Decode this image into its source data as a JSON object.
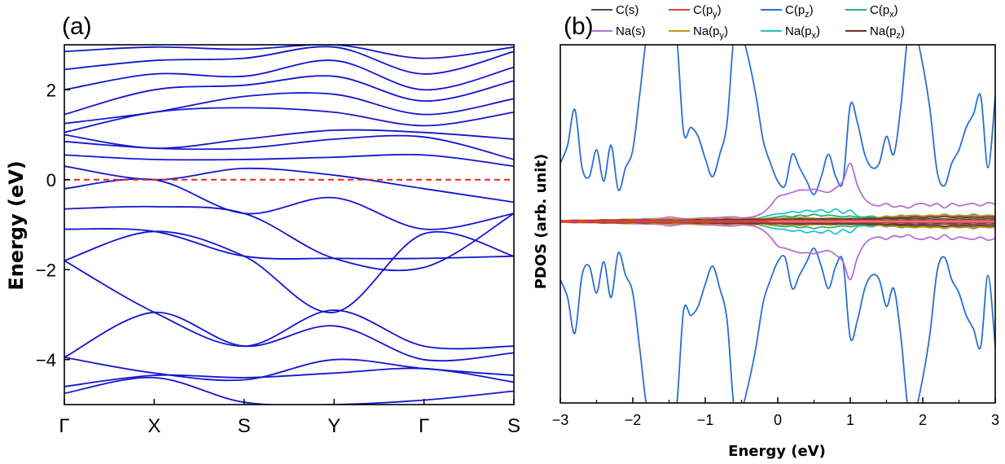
{
  "chart_data": [
    {
      "type": "line",
      "panel_label": "(a)",
      "title": "",
      "xlabel": "",
      "ylabel": "Energy (eV)",
      "ylim": [
        -5,
        3
      ],
      "yticks": [
        -4,
        -2,
        0,
        2
      ],
      "ytick_labels": [
        "−4",
        "−2",
        "0",
        "2"
      ],
      "kpoints": [
        "Γ",
        "X",
        "S",
        "Y",
        "Γ",
        "S"
      ],
      "kpath": [
        0,
        1,
        2,
        3,
        4,
        5
      ],
      "fermi_level": 0,
      "fermi_color": "#e8281f",
      "band_color": "#1414d2",
      "series": [
        {
          "name": "band",
          "values": [
            -4.75,
            -4.4,
            -4.95,
            -5.0,
            -4.9,
            -4.7
          ]
        },
        {
          "name": "band",
          "values": [
            -4.6,
            -4.35,
            -4.4,
            -4.3,
            -4.2,
            -4.5
          ]
        },
        {
          "name": "band",
          "values": [
            -3.95,
            -4.3,
            -4.45,
            -4.0,
            -4.2,
            -4.35
          ]
        },
        {
          "name": "band",
          "values": [
            -3.95,
            -2.95,
            -3.7,
            -3.25,
            -4.0,
            -3.85
          ]
        },
        {
          "name": "band",
          "values": [
            -1.8,
            -2.95,
            -3.7,
            -2.9,
            -3.7,
            -3.7
          ]
        },
        {
          "name": "band",
          "values": [
            -1.8,
            -1.15,
            -1.7,
            -2.95,
            -1.2,
            -1.7
          ]
        },
        {
          "name": "band",
          "values": [
            -1.1,
            -1.15,
            -1.7,
            -1.75,
            -1.75,
            -1.7
          ]
        },
        {
          "name": "band",
          "values": [
            -0.65,
            -0.6,
            -0.75,
            -1.75,
            -1.95,
            -0.75
          ]
        },
        {
          "name": "band",
          "values": [
            -0.2,
            -0.0,
            -0.75,
            -0.4,
            -1.1,
            -0.75
          ]
        },
        {
          "name": "band",
          "values": [
            0.3,
            0.0,
            0.25,
            0.1,
            -0.2,
            -0.5
          ]
        },
        {
          "name": "band",
          "values": [
            0.55,
            0.45,
            0.45,
            0.5,
            0.55,
            0.3
          ]
        },
        {
          "name": "band",
          "values": [
            0.85,
            0.7,
            0.7,
            0.9,
            0.95,
            0.45
          ]
        },
        {
          "name": "band",
          "values": [
            1.0,
            0.7,
            0.9,
            1.1,
            1.05,
            0.9
          ]
        },
        {
          "name": "band",
          "values": [
            1.05,
            1.5,
            1.6,
            1.5,
            1.2,
            1.5
          ]
        },
        {
          "name": "band",
          "values": [
            1.25,
            1.5,
            1.85,
            1.9,
            1.45,
            1.8
          ]
        },
        {
          "name": "band",
          "values": [
            1.45,
            2.0,
            2.1,
            2.3,
            1.75,
            2.2
          ]
        },
        {
          "name": "band",
          "values": [
            2.0,
            2.35,
            2.3,
            2.65,
            2.0,
            2.5
          ]
        },
        {
          "name": "band",
          "values": [
            2.45,
            2.65,
            2.7,
            2.95,
            2.35,
            2.85
          ]
        },
        {
          "name": "band",
          "values": [
            2.85,
            2.95,
            2.9,
            3.0,
            2.7,
            2.95
          ]
        }
      ]
    },
    {
      "type": "line",
      "panel_label": "(b)",
      "title": "",
      "xlabel": "Energy (eV)",
      "ylabel": "PDOS (arb. unit)",
      "xlim": [
        -3,
        3
      ],
      "xticks": [
        -3,
        -2,
        -1,
        0,
        1,
        2,
        3
      ],
      "xtick_labels": [
        "−3",
        "−2",
        "−1",
        "0",
        "1",
        "2",
        "3"
      ],
      "legend": [
        {
          "base": "C(s)",
          "sub": "",
          "close": "",
          "color": "#4d4d4d"
        },
        {
          "base": "C(p",
          "sub": "y",
          "close": ")",
          "color": "#ee3b3b"
        },
        {
          "base": "C(p",
          "sub": "z",
          "close": ")",
          "color": "#2a6fd0"
        },
        {
          "base": "C(p",
          "sub": "x",
          "close": ")",
          "color": "#22b07d"
        },
        {
          "base": "Na(s)",
          "sub": "",
          "close": "",
          "color": "#b56fd6"
        },
        {
          "base": "Na(p",
          "sub": "y",
          "close": ")",
          "color": "#c8920e"
        },
        {
          "base": "Na(p",
          "sub": "x",
          "close": ")",
          "color": "#21c4c4"
        },
        {
          "base": "Na(p",
          "sub": "z",
          "close": ")",
          "color": "#7a2c28"
        }
      ],
      "x": [
        -3.0,
        -2.9,
        -2.8,
        -2.7,
        -2.6,
        -2.5,
        -2.4,
        -2.3,
        -2.2,
        -2.1,
        -2.0,
        -1.9,
        -1.8,
        -1.7,
        -1.6,
        -1.5,
        -1.4,
        -1.3,
        -1.2,
        -1.1,
        -1.0,
        -0.9,
        -0.8,
        -0.7,
        -0.6,
        -0.5,
        -0.4,
        -0.3,
        -0.2,
        -0.1,
        0.0,
        0.1,
        0.2,
        0.3,
        0.4,
        0.5,
        0.6,
        0.7,
        0.8,
        0.9,
        1.0,
        1.1,
        1.2,
        1.3,
        1.4,
        1.5,
        1.6,
        1.7,
        1.8,
        1.9,
        2.0,
        2.1,
        2.2,
        2.3,
        2.4,
        2.5,
        2.6,
        2.7,
        2.8,
        2.9,
        3.0
      ],
      "series": [
        {
          "name": "C(p_z)",
          "values": [
            1.3,
            1.7,
            2.5,
            1.2,
            1.0,
            1.6,
            0.9,
            1.7,
            0.7,
            1.2,
            1.6,
            2.9,
            4.2,
            4.2,
            4.2,
            4.2,
            4.2,
            2.0,
            2.1,
            1.9,
            1.4,
            1.0,
            1.5,
            2.2,
            4.2,
            4.2,
            3.6,
            2.8,
            1.8,
            1.3,
            0.9,
            0.8,
            1.5,
            1.2,
            0.9,
            0.6,
            1.0,
            1.5,
            1.0,
            0.9,
            2.6,
            2.2,
            1.5,
            1.2,
            1.3,
            1.9,
            1.5,
            2.6,
            4.2,
            4.2,
            3.5,
            2.5,
            1.1,
            0.8,
            1.3,
            1.6,
            2.1,
            2.4,
            2.8,
            1.2,
            2.8
          ]
        },
        {
          "name": "Na(s)",
          "values": [
            0.02,
            0.02,
            0.03,
            0.02,
            0.03,
            0.02,
            0.03,
            0.04,
            0.03,
            0.04,
            0.05,
            0.05,
            0.06,
            0.06,
            0.07,
            0.1,
            0.08,
            0.06,
            0.06,
            0.07,
            0.08,
            0.08,
            0.09,
            0.1,
            0.1,
            0.08,
            0.09,
            0.12,
            0.2,
            0.35,
            0.55,
            0.6,
            0.65,
            0.7,
            0.7,
            0.72,
            0.68,
            0.65,
            0.75,
            0.9,
            1.3,
            0.8,
            0.5,
            0.38,
            0.35,
            0.4,
            0.32,
            0.35,
            0.3,
            0.38,
            0.4,
            0.35,
            0.4,
            0.3,
            0.4,
            0.35,
            0.38,
            0.4,
            0.35,
            0.42,
            0.38
          ]
        },
        {
          "name": "Na(p_x)",
          "values": [
            0.01,
            0.01,
            0.01,
            0.02,
            0.01,
            0.02,
            0.02,
            0.03,
            0.02,
            0.03,
            0.03,
            0.02,
            0.03,
            0.02,
            0.03,
            0.04,
            0.03,
            0.03,
            0.03,
            0.04,
            0.04,
            0.04,
            0.04,
            0.05,
            0.05,
            0.05,
            0.05,
            0.06,
            0.1,
            0.14,
            0.17,
            0.18,
            0.22,
            0.2,
            0.25,
            0.22,
            0.26,
            0.2,
            0.28,
            0.18,
            0.25,
            0.12,
            0.1,
            0.12,
            0.08,
            0.1,
            0.08,
            0.12,
            0.09,
            0.12,
            0.1,
            0.12,
            0.09,
            0.14,
            0.1,
            0.12,
            0.1,
            0.14,
            0.12,
            0.13,
            0.12
          ]
        },
        {
          "name": "C(p_x)",
          "values": [
            0.01,
            0.01,
            0.02,
            0.01,
            0.02,
            0.01,
            0.02,
            0.02,
            0.02,
            0.02,
            0.03,
            0.03,
            0.03,
            0.02,
            0.03,
            0.04,
            0.03,
            0.03,
            0.02,
            0.03,
            0.03,
            0.03,
            0.03,
            0.04,
            0.04,
            0.03,
            0.03,
            0.04,
            0.05,
            0.08,
            0.1,
            0.12,
            0.1,
            0.14,
            0.12,
            0.16,
            0.12,
            0.14,
            0.12,
            0.1,
            0.12,
            0.09,
            0.08,
            0.1,
            0.08,
            0.12,
            0.09,
            0.14,
            0.1,
            0.12,
            0.1,
            0.14,
            0.12,
            0.16,
            0.12,
            0.14,
            0.12,
            0.16,
            0.12,
            0.14,
            0.12
          ]
        },
        {
          "name": "Na(p_y)",
          "values": [
            0.01,
            0.02,
            0.02,
            0.03,
            0.02,
            0.03,
            0.04,
            0.03,
            0.04,
            0.05,
            0.04,
            0.03,
            0.04,
            0.05,
            0.04,
            0.06,
            0.05,
            0.04,
            0.05,
            0.06,
            0.05,
            0.06,
            0.05,
            0.07,
            0.06,
            0.05,
            0.06,
            0.07,
            0.06,
            0.08,
            0.06,
            0.08,
            0.07,
            0.09,
            0.08,
            0.07,
            0.06,
            0.08,
            0.07,
            0.06,
            0.07,
            0.06,
            0.07,
            0.08,
            0.09,
            0.1,
            0.11,
            0.12,
            0.13,
            0.14,
            0.12,
            0.14,
            0.13,
            0.15,
            0.12,
            0.14,
            0.13,
            0.14,
            0.12,
            0.14,
            0.13
          ]
        },
        {
          "name": "Na(p_z)",
          "values": [
            0.01,
            0.01,
            0.02,
            0.01,
            0.02,
            0.02,
            0.03,
            0.02,
            0.03,
            0.03,
            0.02,
            0.03,
            0.03,
            0.02,
            0.03,
            0.03,
            0.02,
            0.03,
            0.03,
            0.04,
            0.03,
            0.04,
            0.04,
            0.05,
            0.04,
            0.04,
            0.05,
            0.05,
            0.04,
            0.05,
            0.04,
            0.05,
            0.05,
            0.06,
            0.05,
            0.05,
            0.06,
            0.05,
            0.06,
            0.05,
            0.06,
            0.05,
            0.06,
            0.07,
            0.06,
            0.08,
            0.07,
            0.09,
            0.08,
            0.1,
            0.08,
            0.1,
            0.09,
            0.11,
            0.09,
            0.1,
            0.09,
            0.1,
            0.09,
            0.1,
            0.09
          ]
        },
        {
          "name": "C(s)",
          "values": [
            0.01,
            0.01,
            0.01,
            0.01,
            0.02,
            0.01,
            0.02,
            0.01,
            0.02,
            0.02,
            0.01,
            0.02,
            0.02,
            0.02,
            0.03,
            0.02,
            0.02,
            0.03,
            0.02,
            0.03,
            0.02,
            0.03,
            0.03,
            0.03,
            0.03,
            0.02,
            0.03,
            0.03,
            0.03,
            0.04,
            0.03,
            0.04,
            0.04,
            0.05,
            0.04,
            0.05,
            0.04,
            0.05,
            0.04,
            0.05,
            0.04,
            0.05,
            0.04,
            0.05,
            0.05,
            0.06,
            0.05,
            0.06,
            0.05,
            0.06,
            0.05,
            0.06,
            0.05,
            0.06,
            0.05,
            0.06,
            0.05,
            0.06,
            0.05,
            0.06,
            0.05
          ]
        },
        {
          "name": "C(p_y)",
          "values": [
            0.01,
            0.01,
            0.01,
            0.01,
            0.01,
            0.01,
            0.01,
            0.01,
            0.01,
            0.01,
            0.01,
            0.01,
            0.01,
            0.01,
            0.01,
            0.01,
            0.01,
            0.01,
            0.01,
            0.01,
            0.01,
            0.01,
            0.01,
            0.01,
            0.01,
            0.01,
            0.01,
            0.01,
            0.01,
            0.02,
            0.02,
            0.02,
            0.02,
            0.02,
            0.02,
            0.02,
            0.02,
            0.02,
            0.02,
            0.02,
            0.02,
            0.02,
            0.02,
            0.02,
            0.02,
            0.02,
            0.02,
            0.02,
            0.02,
            0.02,
            0.02,
            0.02,
            0.02,
            0.02,
            0.02,
            0.02,
            0.02,
            0.02,
            0.02,
            0.02,
            0.02
          ]
        }
      ]
    }
  ]
}
